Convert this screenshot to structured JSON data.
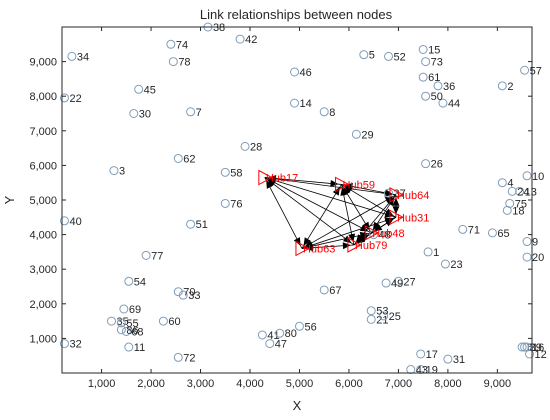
{
  "chart_data": {
    "type": "scatter",
    "title": "Link relationships between nodes",
    "xlabel": "X",
    "ylabel": "Y",
    "xlim": [
      200,
      9700
    ],
    "ylim": [
      0,
      10000
    ],
    "xticks": [
      1000,
      2000,
      3000,
      4000,
      5000,
      6000,
      7000,
      8000,
      9000
    ],
    "xtick_labels": [
      "1,000",
      "2,000",
      "3,000",
      "4,000",
      "5,000",
      "6,000",
      "7,000",
      "8,000",
      "9,000"
    ],
    "yticks": [
      1000,
      2000,
      3000,
      4000,
      5000,
      6000,
      7000,
      8000,
      9000
    ],
    "ytick_labels": [
      "1,000",
      "2,000",
      "3,000",
      "4,000",
      "5,000",
      "6,000",
      "7,000",
      "8,000",
      "9,000"
    ],
    "grid": false,
    "colors": {
      "node": "#7f9cb8",
      "hub": "#ff0000",
      "edge": "#000000",
      "text": "#262626"
    },
    "nodes": [
      {
        "label": "1",
        "x": 7600,
        "y": 3500
      },
      {
        "label": "2",
        "x": 9100,
        "y": 8300
      },
      {
        "label": "3",
        "x": 1250,
        "y": 5850
      },
      {
        "label": "4",
        "x": 9100,
        "y": 5500
      },
      {
        "label": "5",
        "x": 6300,
        "y": 9200
      },
      {
        "label": "6",
        "x": 9500,
        "y": 750
      },
      {
        "label": "7",
        "x": 2800,
        "y": 7550
      },
      {
        "label": "8",
        "x": 5500,
        "y": 7550
      },
      {
        "label": "9",
        "x": 9600,
        "y": 3800
      },
      {
        "label": "10",
        "x": 9600,
        "y": 5700
      },
      {
        "label": "11",
        "x": 1550,
        "y": 750
      },
      {
        "label": "12",
        "x": 9650,
        "y": 550
      },
      {
        "label": "13",
        "x": 9450,
        "y": 5250
      },
      {
        "label": "14",
        "x": 4900,
        "y": 7800
      },
      {
        "label": "15",
        "x": 7500,
        "y": 9350
      },
      {
        "label": "16",
        "x": 9600,
        "y": 750
      },
      {
        "label": "17",
        "x": 7450,
        "y": 550
      },
      {
        "label": "18",
        "x": 9200,
        "y": 4700
      },
      {
        "label": "19",
        "x": 7450,
        "y": 100
      },
      {
        "label": "20",
        "x": 9600,
        "y": 3350
      },
      {
        "label": "21",
        "x": 6450,
        "y": 1550
      },
      {
        "label": "22",
        "x": 250,
        "y": 7950
      },
      {
        "label": "23",
        "x": 7950,
        "y": 3150
      },
      {
        "label": "24",
        "x": 9300,
        "y": 5250
      },
      {
        "label": "25",
        "x": 6700,
        "y": 1650
      },
      {
        "label": "26",
        "x": 7550,
        "y": 6050
      },
      {
        "label": "27",
        "x": 7000,
        "y": 2650
      },
      {
        "label": "28",
        "x": 3900,
        "y": 6550
      },
      {
        "label": "29",
        "x": 6150,
        "y": 6900
      },
      {
        "label": "30",
        "x": 1650,
        "y": 7500
      },
      {
        "label": "31",
        "x": 8000,
        "y": 400
      },
      {
        "label": "32",
        "x": 250,
        "y": 850
      },
      {
        "label": "33",
        "x": 2650,
        "y": 2250
      },
      {
        "label": "34",
        "x": 400,
        "y": 9150
      },
      {
        "label": "35",
        "x": 1200,
        "y": 1500
      },
      {
        "label": "36",
        "x": 7800,
        "y": 8300
      },
      {
        "label": "37",
        "x": 6800,
        "y": 5200
      },
      {
        "label": "38",
        "x": 3150,
        "y": 10000
      },
      {
        "label": "39",
        "x": 9550,
        "y": 750
      },
      {
        "label": "40",
        "x": 250,
        "y": 4400
      },
      {
        "label": "41",
        "x": 4250,
        "y": 1100
      },
      {
        "label": "42",
        "x": 3800,
        "y": 9650
      },
      {
        "label": "43",
        "x": 7250,
        "y": 100
      },
      {
        "label": "44",
        "x": 7900,
        "y": 7800
      },
      {
        "label": "45",
        "x": 1750,
        "y": 8200
      },
      {
        "label": "46",
        "x": 4900,
        "y": 8700
      },
      {
        "label": "47",
        "x": 4400,
        "y": 850
      },
      {
        "label": "48",
        "x": 6500,
        "y": 4000
      },
      {
        "label": "49",
        "x": 6750,
        "y": 2600
      },
      {
        "label": "50",
        "x": 7550,
        "y": 8000
      },
      {
        "label": "51",
        "x": 2800,
        "y": 4300
      },
      {
        "label": "52",
        "x": 6800,
        "y": 9150
      },
      {
        "label": "53",
        "x": 6450,
        "y": 1800
      },
      {
        "label": "54",
        "x": 1550,
        "y": 2650
      },
      {
        "label": "55",
        "x": 1400,
        "y": 1450
      },
      {
        "label": "56",
        "x": 5000,
        "y": 1350
      },
      {
        "label": "57",
        "x": 9550,
        "y": 8750
      },
      {
        "label": "58",
        "x": 3500,
        "y": 5800
      },
      {
        "label": "60",
        "x": 2250,
        "y": 1500
      },
      {
        "label": "61",
        "x": 7500,
        "y": 8550
      },
      {
        "label": "62",
        "x": 2550,
        "y": 6200
      },
      {
        "label": "65",
        "x": 8900,
        "y": 4050
      },
      {
        "label": "67",
        "x": 5500,
        "y": 2400
      },
      {
        "label": "68",
        "x": 1500,
        "y": 1200
      },
      {
        "label": "69",
        "x": 1450,
        "y": 1850
      },
      {
        "label": "70",
        "x": 2550,
        "y": 2350
      },
      {
        "label": "71",
        "x": 8300,
        "y": 4150
      },
      {
        "label": "72",
        "x": 2550,
        "y": 450
      },
      {
        "label": "73",
        "x": 7550,
        "y": 9000
      },
      {
        "label": "74",
        "x": 2400,
        "y": 9500
      },
      {
        "label": "75",
        "x": 9250,
        "y": 4900
      },
      {
        "label": "76",
        "x": 3500,
        "y": 4900
      },
      {
        "label": "77",
        "x": 1900,
        "y": 3400
      },
      {
        "label": "78",
        "x": 2450,
        "y": 9000
      },
      {
        "label": "80",
        "x": 4600,
        "y": 1150
      },
      {
        "label": "86",
        "x": 1400,
        "y": 1250
      }
    ],
    "hubs": [
      {
        "label": "Hub17",
        "x": 4300,
        "y": 5650
      },
      {
        "label": "Hub59",
        "x": 5850,
        "y": 5450
      },
      {
        "label": "Hub64",
        "x": 6950,
        "y": 5150
      },
      {
        "label": "Hub31",
        "x": 6950,
        "y": 4500
      },
      {
        "label": "Hub48",
        "x": 6450,
        "y": 4050
      },
      {
        "label": "Hub79",
        "x": 6100,
        "y": 3700
      },
      {
        "label": "Hub63",
        "x": 5050,
        "y": 3600
      }
    ],
    "edges": [
      [
        "Hub17",
        "Hub59"
      ],
      [
        "Hub17",
        "Hub64"
      ],
      [
        "Hub17",
        "Hub31"
      ],
      [
        "Hub17",
        "Hub48"
      ],
      [
        "Hub17",
        "Hub79"
      ],
      [
        "Hub17",
        "Hub63"
      ],
      [
        "Hub59",
        "Hub64"
      ],
      [
        "Hub59",
        "Hub31"
      ],
      [
        "Hub59",
        "Hub48"
      ],
      [
        "Hub59",
        "Hub79"
      ],
      [
        "Hub59",
        "Hub63"
      ],
      [
        "Hub64",
        "Hub31"
      ],
      [
        "Hub64",
        "Hub48"
      ],
      [
        "Hub64",
        "Hub79"
      ],
      [
        "Hub64",
        "Hub63"
      ],
      [
        "Hub31",
        "Hub48"
      ],
      [
        "Hub31",
        "Hub79"
      ],
      [
        "Hub31",
        "Hub63"
      ],
      [
        "Hub48",
        "Hub79"
      ],
      [
        "Hub48",
        "Hub63"
      ],
      [
        "Hub79",
        "Hub63"
      ]
    ]
  }
}
